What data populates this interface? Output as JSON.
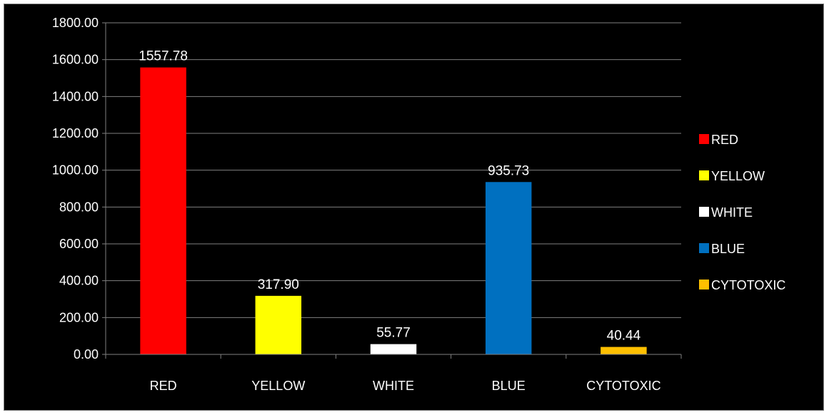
{
  "chart_data": {
    "type": "bar",
    "title": "",
    "xlabel": "",
    "ylabel": "",
    "categories": [
      "RED",
      "YELLOW",
      "WHITE",
      "BLUE",
      "CYTOTOXIC"
    ],
    "values": [
      1557.78,
      317.9,
      55.77,
      935.73,
      40.44
    ],
    "value_labels": [
      "1557.78",
      "317.90",
      "55.77",
      "935.73",
      "40.44"
    ],
    "colors": [
      "#ff0000",
      "#ffff00",
      "#ffffff",
      "#0070c0",
      "#ffc000"
    ],
    "ylim": [
      0,
      1800
    ],
    "yticks": [
      {
        "value": 0,
        "label": "0.00"
      },
      {
        "value": 200,
        "label": "200.00"
      },
      {
        "value": 400,
        "label": "400.00"
      },
      {
        "value": 600,
        "label": "600.00"
      },
      {
        "value": 800,
        "label": "800.00"
      },
      {
        "value": 1000,
        "label": "1000.00"
      },
      {
        "value": 1200,
        "label": "1200.00"
      },
      {
        "value": 1400,
        "label": "1400.00"
      },
      {
        "value": 1600,
        "label": "1600.00"
      },
      {
        "value": 1800,
        "label": "1800.00"
      }
    ],
    "grid": true,
    "background": "#000000",
    "gridline_color": "#7f7f7f",
    "legend": {
      "position": "right",
      "entries": [
        {
          "label": "RED",
          "color": "#ff0000"
        },
        {
          "label": "YELLOW",
          "color": "#ffff00"
        },
        {
          "label": "WHITE",
          "color": "#ffffff"
        },
        {
          "label": "BLUE",
          "color": "#0070c0"
        },
        {
          "label": "CYTOTOXIC",
          "color": "#ffc000"
        }
      ]
    }
  }
}
